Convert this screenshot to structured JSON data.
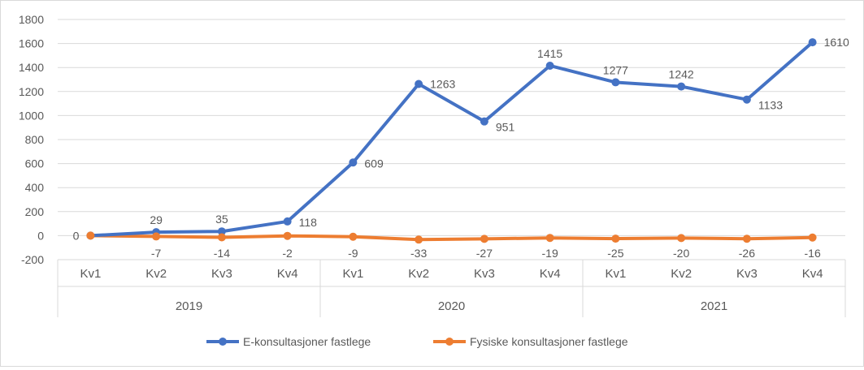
{
  "chart_data": {
    "type": "line",
    "title": "",
    "xlabel": "",
    "ylabel": "",
    "ylim": [
      -200,
      1800
    ],
    "yticks": [
      -200,
      0,
      200,
      400,
      600,
      800,
      1000,
      1200,
      1400,
      1600,
      1800
    ],
    "grid": true,
    "legend_position": "bottom",
    "categories": [
      "Kv1",
      "Kv2",
      "Kv3",
      "Kv4",
      "Kv1",
      "Kv2",
      "Kv3",
      "Kv4",
      "Kv1",
      "Kv2",
      "Kv3",
      "Kv4"
    ],
    "groups": [
      {
        "label": "2019",
        "count": 4
      },
      {
        "label": "2020",
        "count": 4
      },
      {
        "label": "2021",
        "count": 4
      }
    ],
    "series": [
      {
        "name": "E-konsultasjoner fastlege",
        "color": "#4472C4",
        "values": [
          0,
          29,
          35,
          118,
          609,
          1263,
          951,
          1415,
          1277,
          1242,
          1133,
          1610
        ]
      },
      {
        "name": "Fysiske konsultasjoner fastlege",
        "color": "#ED7D31",
        "values": [
          0,
          -7,
          -14,
          -2,
          -9,
          -33,
          -27,
          -19,
          -25,
          -20,
          -26,
          -16
        ]
      }
    ]
  }
}
